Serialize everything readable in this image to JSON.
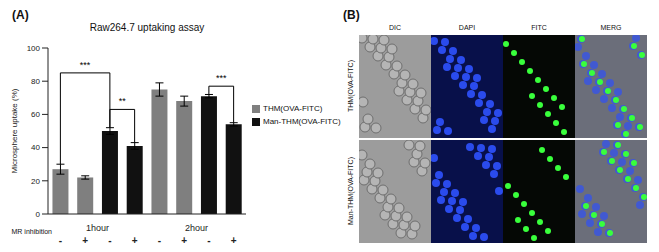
{
  "panel_labels": [
    "(A)",
    "(B)"
  ],
  "chart_data": {
    "type": "bar",
    "title": "Raw264.7 uptaking assay",
    "y_label": "Microsphere uptake (%)",
    "x_label": "MR inhibition",
    "categories": [
      "-",
      "+",
      "-",
      "+",
      "-",
      "+",
      "-",
      "+"
    ],
    "group_labels": [
      "1hour",
      "2hour"
    ],
    "series": [
      {
        "name": "THM(OVA-FITC)",
        "color": "#7f7f7f",
        "values": [
          27,
          22,
          null,
          null,
          75,
          68,
          null,
          null
        ],
        "errors": [
          3,
          1,
          null,
          null,
          4,
          3,
          null,
          null
        ]
      },
      {
        "name": "Man-THM(OVA-FITC)",
        "color": "#111111",
        "values": [
          null,
          null,
          50,
          41,
          null,
          null,
          71,
          54
        ],
        "errors": [
          null,
          null,
          2,
          2,
          null,
          null,
          1,
          1
        ]
      }
    ],
    "ylim": [
      0,
      100
    ],
    "yticks": [
      0,
      20,
      40,
      60,
      80,
      100
    ],
    "legend": "right",
    "annotations": [
      {
        "text": "***",
        "from": 0,
        "to": 2,
        "y": 85
      },
      {
        "text": "**",
        "from": 2,
        "to": 3,
        "y": 63
      },
      {
        "text": "***",
        "from": 6,
        "to": 7,
        "y": 77
      }
    ]
  },
  "images": {
    "columns": [
      "DIC",
      "DAPI",
      "FITC",
      "MERG"
    ],
    "rows": [
      "THM(OVA-FITC)",
      "Man-THM(OVA-FITC)"
    ]
  }
}
